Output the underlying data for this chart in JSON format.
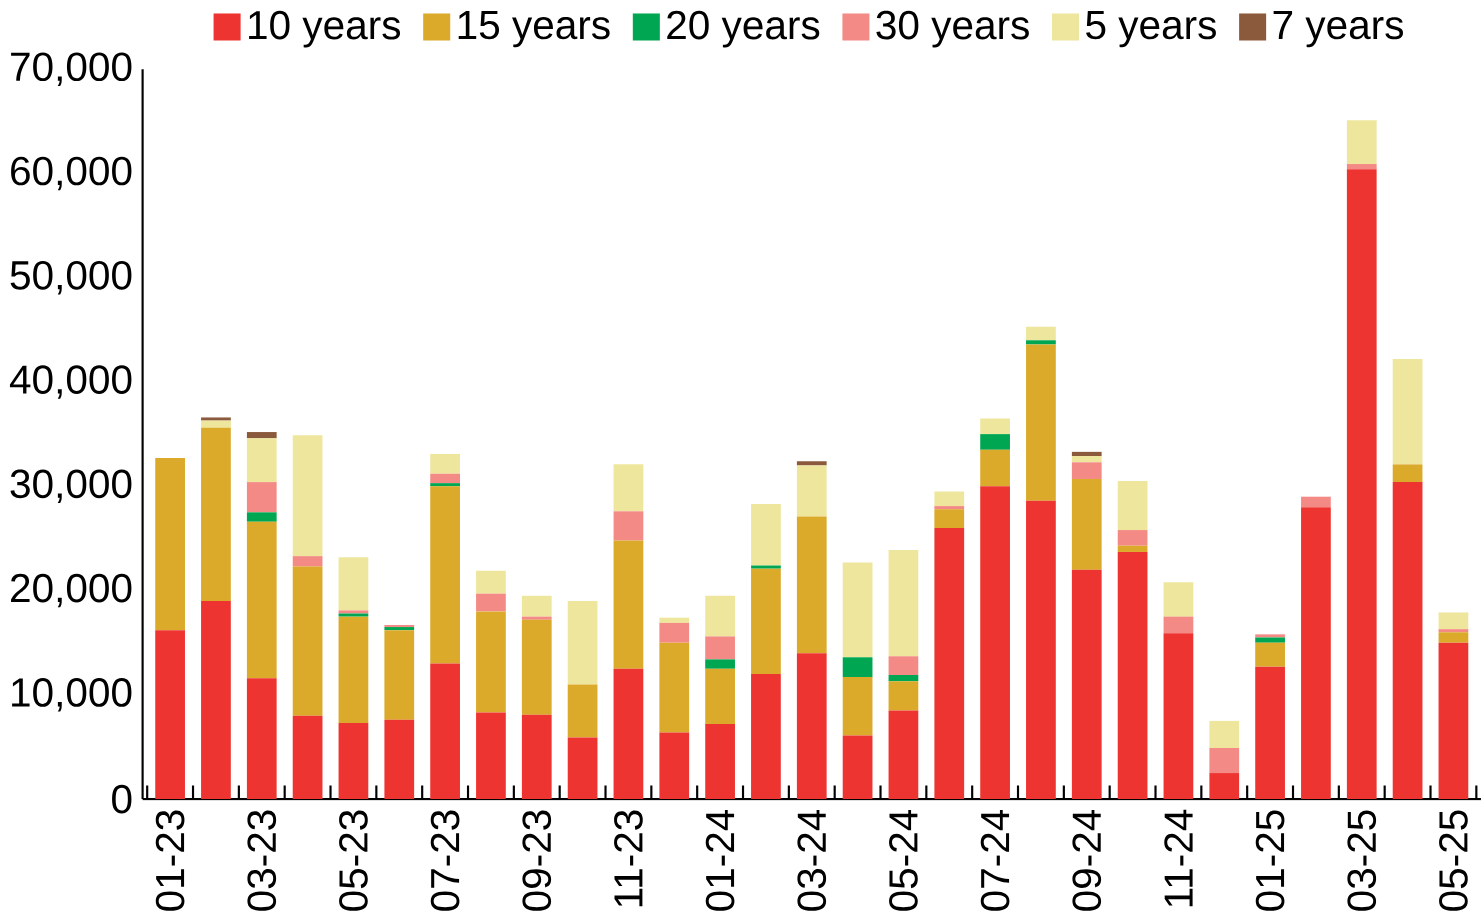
{
  "chart_data": {
    "type": "bar",
    "stacked": true,
    "legend": "top",
    "grid": false,
    "categories": [
      "01-23",
      null,
      "03-23",
      null,
      "05-23",
      null,
      "07-23",
      null,
      "09-23",
      null,
      "11-23",
      null,
      "01-24",
      null,
      "03-24",
      null,
      "05-24",
      null,
      "07-24",
      null,
      "09-24",
      null,
      "11-24",
      null,
      "01-25",
      null,
      "03-25",
      null,
      "05-25"
    ],
    "series": [
      {
        "name": "10 years",
        "color": "#ee3431",
        "values": [
          16200,
          19000,
          11600,
          8000,
          7300,
          7600,
          13000,
          8300,
          8100,
          5900,
          12500,
          6400,
          7200,
          12000,
          14000,
          6100,
          8500,
          26000,
          30000,
          28600,
          22000,
          23700,
          15900,
          2500,
          12700,
          28000,
          60400,
          30400,
          15000
        ]
      },
      {
        "name": "15 years",
        "color": "#dbaa2a",
        "values": [
          16500,
          16600,
          15000,
          14300,
          10200,
          8600,
          17000,
          9700,
          9100,
          5100,
          12300,
          8600,
          5300,
          10100,
          13100,
          5600,
          2800,
          1800,
          3500,
          15000,
          8700,
          600,
          0,
          0,
          2300,
          0,
          0,
          1700,
          1000
        ]
      },
      {
        "name": "20 years",
        "color": "#00a651",
        "values": [
          0,
          0,
          900,
          0,
          300,
          300,
          300,
          0,
          0,
          0,
          0,
          0,
          900,
          300,
          0,
          1900,
          600,
          0,
          1500,
          400,
          0,
          0,
          0,
          0,
          500,
          0,
          0,
          0,
          0
        ]
      },
      {
        "name": "30 years",
        "color": "#f48a85",
        "values": [
          0,
          0,
          2900,
          1000,
          300,
          200,
          900,
          1700,
          300,
          0,
          2800,
          1900,
          2200,
          0,
          0,
          0,
          1800,
          300,
          0,
          0,
          1600,
          1500,
          1600,
          2400,
          300,
          1000,
          500,
          0,
          300
        ]
      },
      {
        "name": "5 years",
        "color": "#eee69d",
        "values": [
          0,
          700,
          4200,
          11600,
          5100,
          0,
          1900,
          2200,
          2000,
          8000,
          4500,
          500,
          3900,
          5900,
          4900,
          9100,
          10200,
          1400,
          1500,
          1300,
          600,
          4700,
          3300,
          2600,
          0,
          0,
          4200,
          10100,
          1600
        ]
      },
      {
        "name": "7 years",
        "color": "#8b5a3c",
        "values": [
          0,
          300,
          600,
          0,
          0,
          0,
          0,
          0,
          0,
          0,
          0,
          0,
          0,
          0,
          400,
          0,
          0,
          0,
          0,
          0,
          400,
          0,
          0,
          0,
          0,
          0,
          0,
          0,
          0
        ]
      }
    ],
    "ylim": [
      0,
      70000
    ],
    "yticks": [
      {
        "value": 0,
        "label": "0"
      },
      {
        "value": 10000,
        "label": "10,000"
      },
      {
        "value": 20000,
        "label": "20,000"
      },
      {
        "value": 30000,
        "label": "30,000"
      },
      {
        "value": 40000,
        "label": "40,000"
      },
      {
        "value": 50000,
        "label": "50,000"
      },
      {
        "value": 60000,
        "label": "60,000"
      },
      {
        "value": 70000,
        "label": "70,000"
      }
    ]
  }
}
